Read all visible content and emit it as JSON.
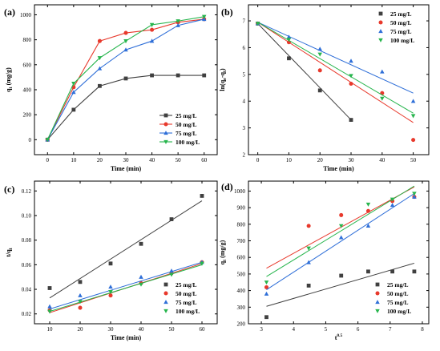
{
  "series_styles": [
    {
      "name": "25 mg/L",
      "color": "#404040",
      "marker": "square"
    },
    {
      "name": "50 mg/L",
      "color": "#e8392c",
      "marker": "circle"
    },
    {
      "name": "75 mg/L",
      "color": "#2f6fd8",
      "marker": "triangle-up"
    },
    {
      "name": "100 mg/L",
      "color": "#27b54d",
      "marker": "triangle-down"
    }
  ],
  "chart_data": [
    {
      "panel": "(a)",
      "type": "line",
      "xlabel": "Time (min)",
      "ylabel": "qt (mg/g)",
      "xlim": [
        -5,
        65
      ],
      "ylim": [
        -120,
        1080
      ],
      "xticks": [
        0,
        10,
        20,
        30,
        40,
        50,
        60
      ],
      "yticks": [
        0,
        200,
        400,
        600,
        800,
        1000
      ],
      "legend_position": "bottom-right",
      "x": [
        0,
        10,
        20,
        30,
        40,
        50,
        60
      ],
      "series": [
        {
          "name": "25 mg/L",
          "values": [
            0,
            240,
            430,
            490,
            515,
            515,
            515
          ]
        },
        {
          "name": "50 mg/L",
          "values": [
            0,
            420,
            790,
            855,
            880,
            940,
            965
          ]
        },
        {
          "name": "75 mg/L",
          "values": [
            0,
            380,
            570,
            720,
            790,
            915,
            965
          ]
        },
        {
          "name": "100 mg/L",
          "values": [
            0,
            450,
            655,
            790,
            920,
            950,
            985
          ]
        }
      ]
    },
    {
      "panel": "(b)",
      "type": "scatter",
      "xlabel": "Time (min)",
      "ylabel": "ln(qe-qt)",
      "xlim": [
        -3,
        55
      ],
      "ylim": [
        2,
        7.6
      ],
      "xticks": [
        0,
        10,
        20,
        30,
        40,
        50
      ],
      "yticks": [
        2,
        3,
        4,
        5,
        6,
        7
      ],
      "legend_position": "top-right",
      "series": [
        {
          "name": "25 mg/L",
          "x": [
            0,
            10,
            20,
            30
          ],
          "values": [
            6.9,
            5.6,
            4.4,
            3.3
          ],
          "fit": [
            [
              0,
              6.9
            ],
            [
              30,
              3.3
            ]
          ]
        },
        {
          "name": "50 mg/L",
          "x": [
            0,
            10,
            20,
            30,
            40,
            50
          ],
          "values": [
            6.9,
            6.2,
            5.15,
            4.65,
            4.3,
            2.55
          ],
          "fit": [
            [
              0,
              6.95
            ],
            [
              50,
              3.2
            ]
          ]
        },
        {
          "name": "75 mg/L",
          "x": [
            0,
            10,
            20,
            30,
            40,
            50
          ],
          "values": [
            6.9,
            6.4,
            5.95,
            5.5,
            5.1,
            4.0
          ],
          "fit": [
            [
              0,
              6.95
            ],
            [
              50,
              4.3
            ]
          ]
        },
        {
          "name": "100 mg/L",
          "x": [
            0,
            10,
            20,
            30,
            40,
            50
          ],
          "values": [
            6.9,
            6.3,
            5.75,
            4.95,
            4.1,
            3.45
          ],
          "fit": [
            [
              0,
              6.95
            ],
            [
              50,
              3.55
            ]
          ]
        }
      ]
    },
    {
      "panel": "(c)",
      "type": "scatter",
      "xlabel": "Time (min)",
      "ylabel": "t/qt",
      "xlim": [
        5,
        65
      ],
      "ylim": [
        0.012,
        0.128
      ],
      "xticks": [
        10,
        20,
        30,
        40,
        50,
        60
      ],
      "yticks": [
        0.02,
        0.04,
        0.06,
        0.08,
        0.1,
        0.12
      ],
      "yticklabels": [
        "0.02",
        "0.04",
        "0.06",
        "0.08",
        "0.10",
        "0.12"
      ],
      "legend_position": "bottom-right",
      "series": [
        {
          "name": "25 mg/L",
          "x": [
            10,
            20,
            30,
            40,
            50,
            60
          ],
          "values": [
            0.041,
            0.046,
            0.061,
            0.077,
            0.097,
            0.116
          ],
          "fit": [
            [
              10,
              0.033
            ],
            [
              60,
              0.112
            ]
          ]
        },
        {
          "name": "50 mg/L",
          "x": [
            10,
            20,
            30,
            40,
            50,
            60
          ],
          "values": [
            0.023,
            0.025,
            0.035,
            0.045,
            0.053,
            0.062
          ],
          "fit": [
            [
              10,
              0.021
            ],
            [
              60,
              0.061
            ]
          ]
        },
        {
          "name": "75 mg/L",
          "x": [
            10,
            20,
            30,
            40,
            50,
            60
          ],
          "values": [
            0.026,
            0.035,
            0.042,
            0.05,
            0.055,
            0.062
          ],
          "fit": [
            [
              10,
              0.024
            ],
            [
              60,
              0.062
            ]
          ]
        },
        {
          "name": "100 mg/L",
          "x": [
            10,
            20,
            30,
            40,
            50,
            60
          ],
          "values": [
            0.022,
            0.03,
            0.038,
            0.044,
            0.052,
            0.061
          ],
          "fit": [
            [
              10,
              0.022
            ],
            [
              60,
              0.06
            ]
          ]
        }
      ]
    },
    {
      "panel": "(d)",
      "type": "scatter",
      "xlabel": "t0.5",
      "ylabel": "qt (mg/g)",
      "xlim": [
        2.6,
        8.2
      ],
      "ylim": [
        200,
        1060
      ],
      "xticks": [
        3,
        4,
        5,
        6,
        7,
        8
      ],
      "yticks": [
        200,
        300,
        400,
        500,
        600,
        700,
        800,
        900,
        1000
      ],
      "legend_position": "bottom-right",
      "series": [
        {
          "name": "25 mg/L",
          "x": [
            3.16,
            4.47,
            5.48,
            6.32,
            7.07,
            7.75
          ],
          "values": [
            240,
            430,
            490,
            515,
            515,
            515
          ],
          "fit": [
            [
              3.16,
              305
            ],
            [
              7.75,
              565
            ]
          ]
        },
        {
          "name": "50 mg/L",
          "x": [
            3.16,
            4.47,
            5.48,
            6.32,
            7.07,
            7.75
          ],
          "values": [
            420,
            790,
            855,
            880,
            940,
            965
          ],
          "fit": [
            [
              3.16,
              535
            ],
            [
              7.75,
              1025
            ]
          ]
        },
        {
          "name": "75 mg/L",
          "x": [
            3.16,
            4.47,
            5.48,
            6.32,
            7.07,
            7.75
          ],
          "values": [
            380,
            570,
            720,
            790,
            915,
            965
          ],
          "fit": [
            [
              3.16,
              405
            ],
            [
              7.75,
              985
            ]
          ]
        },
        {
          "name": "100 mg/L",
          "x": [
            3.16,
            4.47,
            5.48,
            6.32,
            7.07,
            7.75
          ],
          "values": [
            450,
            655,
            790,
            920,
            950,
            985
          ],
          "fit": [
            [
              3.16,
              485
            ],
            [
              7.75,
              1030
            ]
          ]
        }
      ]
    }
  ]
}
